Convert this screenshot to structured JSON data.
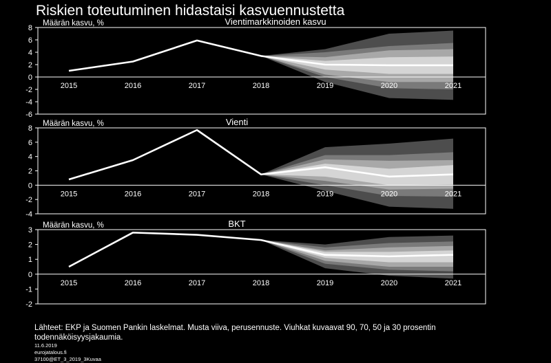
{
  "title": "Riskien toteutuminen hidastaisi kasvuennustetta",
  "chart_data": [
    {
      "type": "line",
      "title": "Vientimarkkinoiden  kasvu",
      "ylabel": "Määrän kasvu, %",
      "ylim": [
        -6,
        8
      ],
      "yticks": [
        -6,
        -4,
        -2,
        0,
        2,
        4,
        6,
        8
      ],
      "categories": [
        "2015",
        "2016",
        "2017",
        "2018",
        "2019",
        "2020",
        "2021"
      ],
      "series": [
        {
          "values": [
            1.0,
            2.5,
            5.9,
            3.4,
            2.0,
            1.9,
            1.9
          ]
        }
      ],
      "fan_chart": {
        "start_year": "2018",
        "bands": [
          {
            "probability": 90,
            "lower": [
              3.4,
              -0.8,
              -3.4,
              -3.7
            ],
            "upper": [
              3.4,
              4.5,
              7.0,
              7.5
            ]
          },
          {
            "probability": 70,
            "lower": [
              3.4,
              0.0,
              -1.8,
              -2.0
            ],
            "upper": [
              3.4,
              4.0,
              5.0,
              5.5
            ]
          },
          {
            "probability": 50,
            "lower": [
              3.4,
              0.4,
              -0.8,
              -0.8
            ],
            "upper": [
              3.4,
              3.2,
              4.3,
              4.5
            ]
          },
          {
            "probability": 30,
            "lower": [
              3.4,
              1.2,
              0.5,
              0.5
            ],
            "upper": [
              3.4,
              2.6,
              3.2,
              3.3
            ]
          }
        ]
      }
    },
    {
      "type": "line",
      "title": "Vienti",
      "ylabel": "Määrän kasvu, %",
      "ylim": [
        -4,
        8
      ],
      "yticks": [
        -4,
        -2,
        0,
        2,
        4,
        6,
        8
      ],
      "categories": [
        "2015",
        "2016",
        "2017",
        "2018",
        "2019",
        "2020",
        "2021"
      ],
      "series": [
        {
          "values": [
            0.8,
            3.5,
            7.7,
            1.5,
            2.5,
            1.2,
            1.5
          ]
        }
      ],
      "fan_chart": {
        "start_year": "2018",
        "bands": [
          {
            "probability": 90,
            "lower": [
              1.5,
              -0.8,
              -3.0,
              -3.3
            ],
            "upper": [
              1.5,
              5.3,
              5.8,
              6.5
            ]
          },
          {
            "probability": 70,
            "lower": [
              1.5,
              0.0,
              -1.5,
              -1.6
            ],
            "upper": [
              1.5,
              4.2,
              4.2,
              4.6
            ]
          },
          {
            "probability": 50,
            "lower": [
              1.5,
              0.6,
              -0.6,
              -0.5
            ],
            "upper": [
              1.5,
              3.6,
              3.4,
              3.5
            ]
          },
          {
            "probability": 30,
            "lower": [
              1.5,
              1.2,
              0.0,
              0.1
            ],
            "upper": [
              1.5,
              3.0,
              2.3,
              2.8
            ]
          }
        ]
      }
    },
    {
      "type": "line",
      "title": "BKT",
      "ylabel": "Määrän kasvu, %",
      "ylim": [
        -2,
        3
      ],
      "yticks": [
        -2,
        -1,
        0,
        1,
        2,
        3
      ],
      "categories": [
        "2015",
        "2016",
        "2017",
        "2018",
        "2019",
        "2020",
        "2021"
      ],
      "series": [
        {
          "values": [
            0.5,
            2.8,
            2.65,
            2.3,
            1.3,
            1.2,
            1.3
          ]
        }
      ],
      "fan_chart": {
        "start_year": "2018",
        "bands": [
          {
            "probability": 90,
            "lower": [
              2.3,
              0.4,
              -0.1,
              -0.3
            ],
            "upper": [
              2.3,
              2.0,
              2.5,
              2.6
            ]
          },
          {
            "probability": 70,
            "lower": [
              2.3,
              0.7,
              0.3,
              0.2
            ],
            "upper": [
              2.3,
              1.8,
              2.1,
              2.2
            ]
          },
          {
            "probability": 50,
            "lower": [
              2.3,
              0.9,
              0.5,
              0.5
            ],
            "upper": [
              2.3,
              1.6,
              1.8,
              1.9
            ]
          },
          {
            "probability": 30,
            "lower": [
              2.3,
              1.1,
              0.8,
              0.8
            ],
            "upper": [
              2.3,
              1.5,
              1.5,
              1.6
            ]
          }
        ]
      }
    }
  ],
  "footer": {
    "source": "Lähteet: EKP ja Suomen Pankin laskelmat. Musta viiva, perusennuste.  Viuhkat kuvaavat  90, 70, 50 ja 30 prosentin todennäköisyysjakaumia.",
    "date": "11.6.2019",
    "site": "eurojatalous.fi",
    "code": "37100@ET_3_2019_3Kuvaa"
  }
}
